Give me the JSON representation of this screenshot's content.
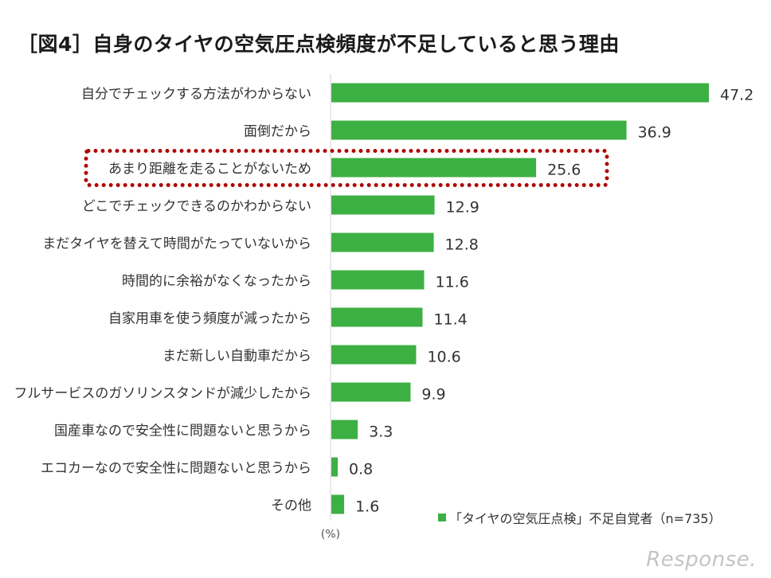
{
  "title": "［図4］自身のタイヤの空気圧点検頻度が不足していると思う理由",
  "chart_data": {
    "type": "bar",
    "orientation": "horizontal",
    "categories": [
      "自分でチェックする方法がわからない",
      "面倒だから",
      "あまり距離を走ることがないため",
      "どこでチェックできるのかわからない",
      "まだタイヤを替えて時間がたっていないから",
      "時間的に余裕がなくなったから",
      "自家用車を使う頻度が減ったから",
      "まだ新しい自動車だから",
      "フルサービスのガソリンスタンドが減少したから",
      "国産車なので安全性に問題ないと思うから",
      "エコカーなので安全性に問題ないと思うから",
      "その他"
    ],
    "series": [
      {
        "name": "「タイヤの空気圧点検」不足自覚者（n=735）",
        "values": [
          47.2,
          36.9,
          25.6,
          12.9,
          12.8,
          11.6,
          11.4,
          10.6,
          9.9,
          3.3,
          0.8,
          1.6
        ]
      }
    ],
    "value_labels": [
      "47.2",
      "36.9",
      "25.6",
      "12.9",
      "12.8",
      "11.6",
      "11.4",
      "10.6",
      "9.9",
      "3.3",
      "0.8",
      "1.6"
    ],
    "unit_label": "(%)",
    "highlighted_category": "あまり距離を走ることがないため",
    "bar_color": "#3cb043",
    "highlight_color": "#b00000",
    "xlim": [
      0,
      47.2
    ],
    "grid": false,
    "legend_position": "bottom-right"
  },
  "watermark": "Response."
}
